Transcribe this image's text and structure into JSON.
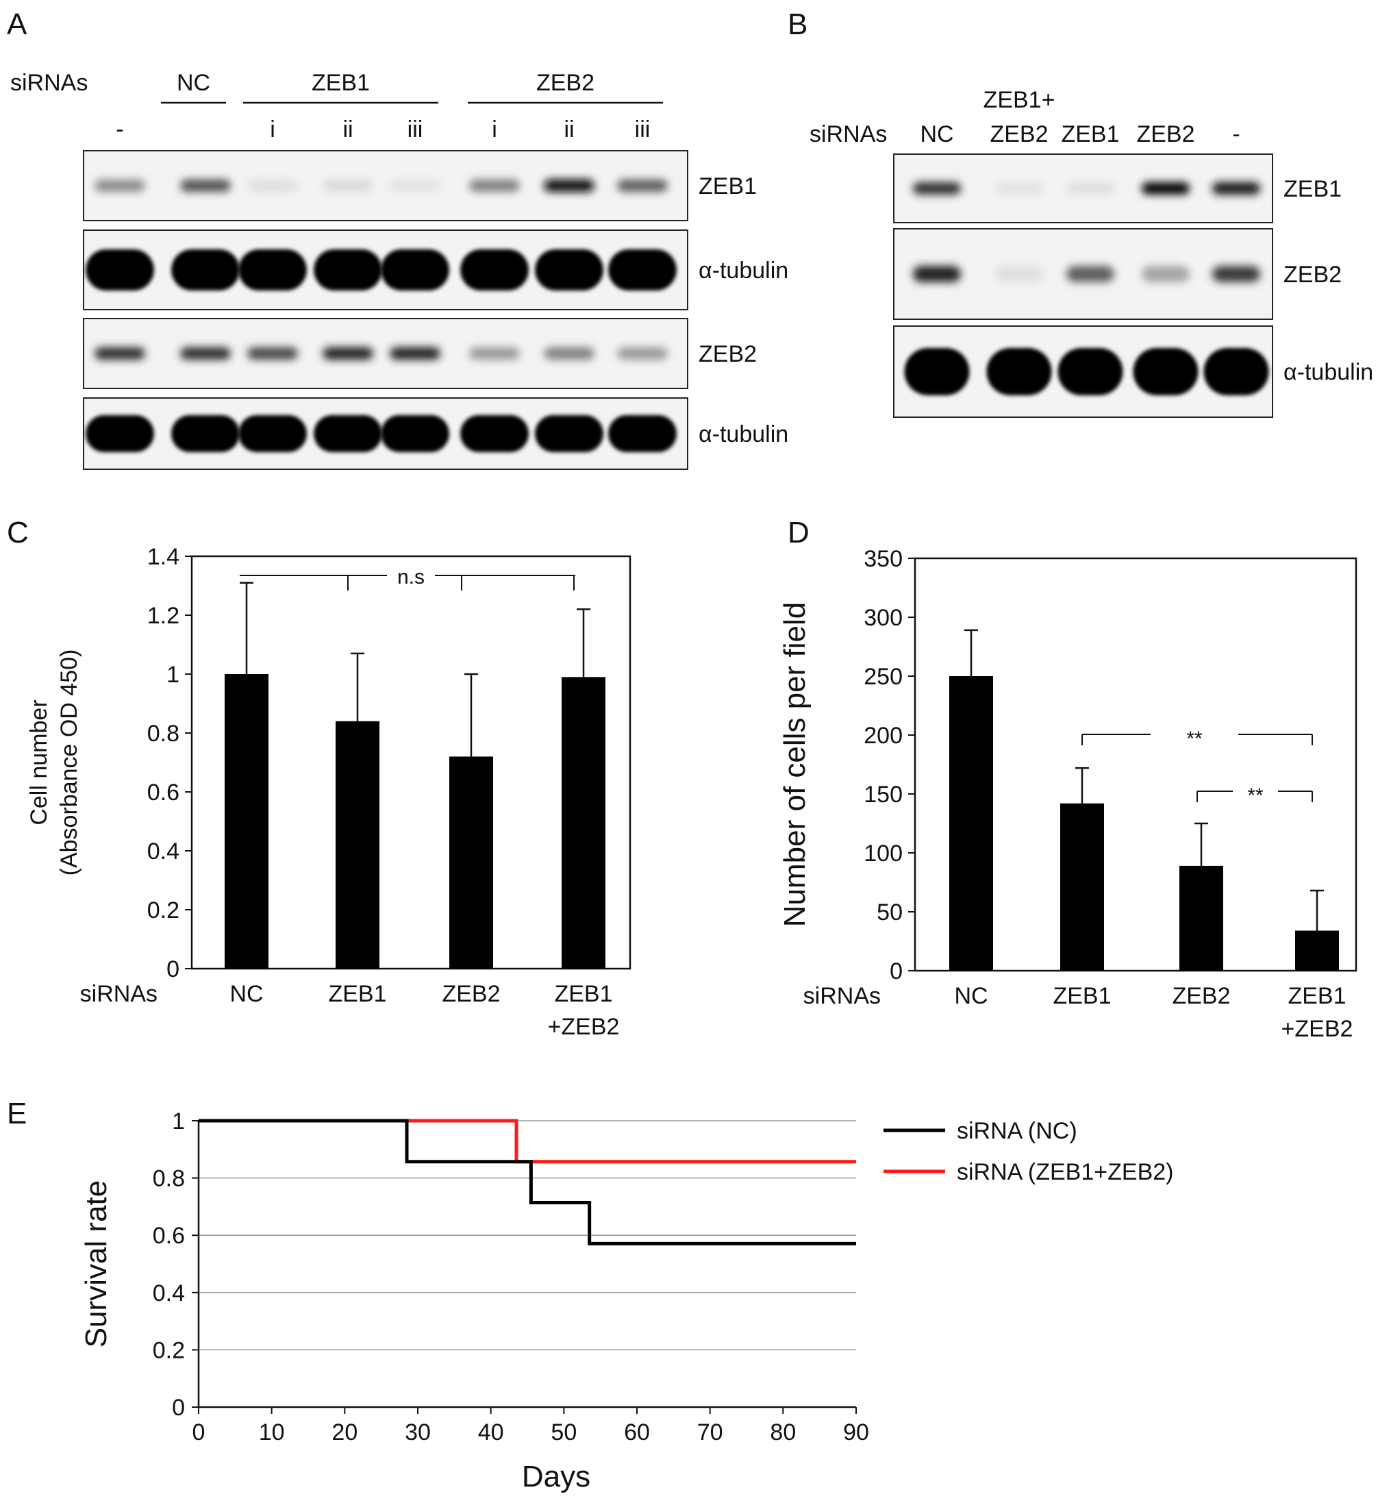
{
  "panels": {
    "A": {
      "letter": "A",
      "row_label": "siRNAs",
      "groups": [
        {
          "name": "NC",
          "lanes": [
            ""
          ]
        },
        {
          "name": "ZEB1",
          "lanes": [
            "i",
            "ii",
            "iii"
          ]
        },
        {
          "name": "ZEB2",
          "lanes": [
            "i",
            "ii",
            "iii"
          ]
        }
      ],
      "first_lane": "-",
      "blots": [
        {
          "label": "ZEB1",
          "intensity": [
            0.4,
            0.65,
            0.05,
            0.07,
            0.04,
            0.45,
            0.95,
            0.6
          ]
        },
        {
          "label": "α-tubulin",
          "intensity": [
            1,
            1,
            1,
            1,
            1,
            1,
            1,
            1
          ]
        },
        {
          "label": "ZEB2",
          "intensity": [
            0.8,
            0.8,
            0.7,
            0.85,
            0.85,
            0.35,
            0.45,
            0.35
          ]
        },
        {
          "label": "α-tubulin",
          "intensity": [
            1,
            1,
            1,
            1,
            1,
            1,
            1,
            1
          ]
        }
      ]
    },
    "B": {
      "letter": "B",
      "row_label": "siRNAs",
      "lanes": [
        "NC",
        "ZEB1+\nZEB2",
        "ZEB1",
        "ZEB2",
        "-"
      ],
      "blots": [
        {
          "label": "ZEB1",
          "intensity": [
            0.8,
            0.04,
            0.05,
            1.0,
            0.9
          ]
        },
        {
          "label": "ZEB2",
          "intensity": [
            0.85,
            0.05,
            0.6,
            0.3,
            0.75
          ]
        },
        {
          "label": "α-tubulin",
          "intensity": [
            1,
            1,
            1,
            1,
            1
          ]
        }
      ]
    }
  },
  "chart_data": [
    {
      "panel": "C",
      "type": "bar",
      "letter": "C",
      "xlabel_prefix": "siRNAs",
      "categories": [
        "NC",
        "ZEB1",
        "ZEB2",
        "ZEB1\n+ZEB2"
      ],
      "values": [
        1.0,
        0.84,
        0.72,
        0.99
      ],
      "errors": [
        0.31,
        0.23,
        0.28,
        0.23
      ],
      "ylabel": [
        "Cell number",
        "(Absorbance OD 450)"
      ],
      "ylim": [
        0,
        1.4
      ],
      "yticks": [
        "0",
        "0.2",
        "0.4",
        "0.6",
        "0.8",
        "1",
        "1.2",
        "1.4"
      ],
      "annotations": [
        {
          "text": "n.s",
          "between": [
            0,
            3
          ]
        }
      ],
      "bar_color": "#000000"
    },
    {
      "panel": "D",
      "type": "bar",
      "letter": "D",
      "xlabel_prefix": "siRNAs",
      "categories": [
        "NC",
        "ZEB1",
        "ZEB2",
        "ZEB1\n+ZEB2"
      ],
      "values": [
        250,
        142,
        89,
        34
      ],
      "errors": [
        39,
        30,
        36,
        34
      ],
      "ylabel": "Number  of  cells per field",
      "ylim": [
        0,
        350
      ],
      "yticks": [
        "0",
        "50",
        "100",
        "150",
        "200",
        "250",
        "300",
        "350"
      ],
      "annotations": [
        {
          "text": "**",
          "between": [
            1,
            3
          ]
        },
        {
          "text": "**",
          "between": [
            2,
            3
          ]
        }
      ],
      "bar_color": "#000000"
    },
    {
      "panel": "E",
      "type": "line",
      "letter": "E",
      "xlabel": "Days",
      "ylabel": "Survival rate",
      "xlim": [
        0,
        90
      ],
      "ylim": [
        0,
        1
      ],
      "xticks": [
        "0",
        "10",
        "20",
        "30",
        "40",
        "50",
        "60",
        "70",
        "80",
        "90"
      ],
      "yticks": [
        "0",
        "0.2",
        "0.4",
        "0.6",
        "0.8",
        "1"
      ],
      "grid": true,
      "legend_position": "right",
      "series": [
        {
          "name": "siRNA (NC)",
          "color": "#000000",
          "x": [
            0,
            28.5,
            28.5,
            45.5,
            45.5,
            53.5,
            53.5,
            90
          ],
          "y": [
            1,
            1,
            0.857,
            0.857,
            0.714,
            0.714,
            0.571,
            0.571
          ]
        },
        {
          "name": "siRNA (ZEB1+ZEB2)",
          "color": "#ff1a1a",
          "x": [
            0,
            43.5,
            43.5,
            90
          ],
          "y": [
            1,
            1,
            0.857,
            0.857
          ]
        }
      ]
    }
  ]
}
